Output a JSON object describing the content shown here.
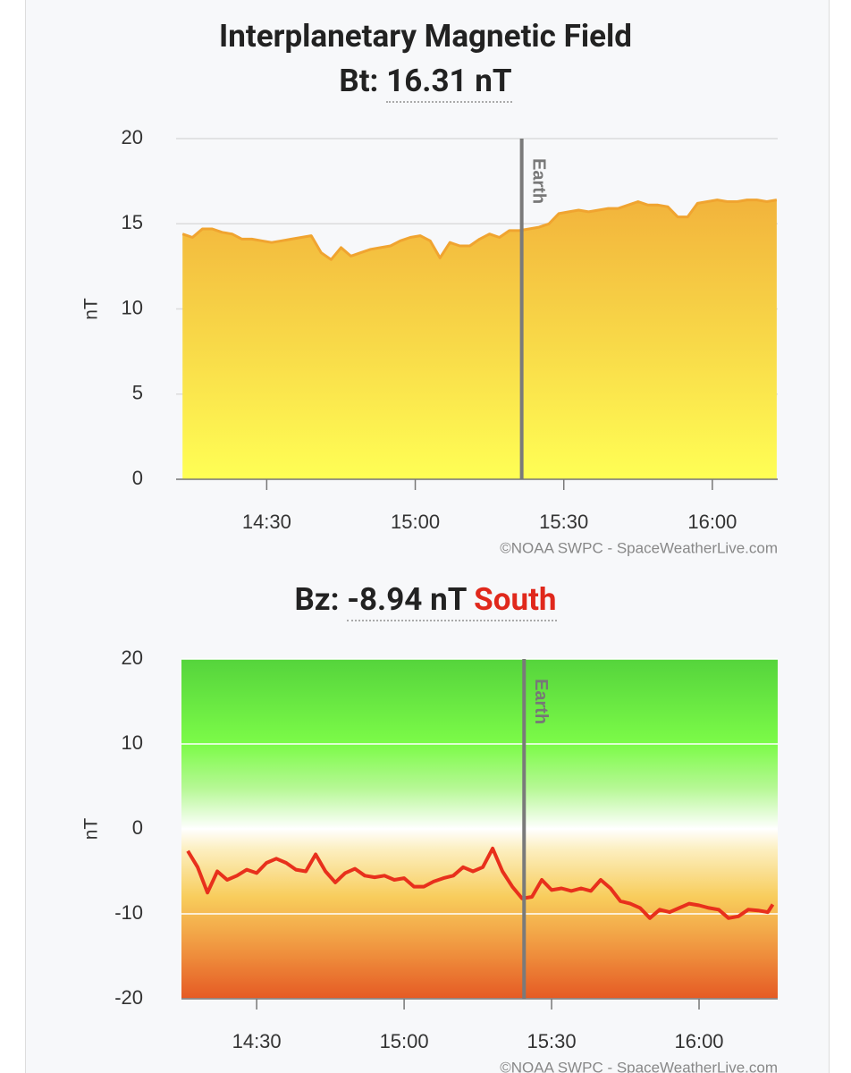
{
  "chart_data": [
    {
      "type": "area",
      "title": "Interplanetary Magnetic Field",
      "subtitle_label": "Bt:",
      "subtitle_value": "16.31 nT",
      "y_label": "nT",
      "source": "©NOAA SWPC - SpaceWeatherLive.com",
      "x": [
        853,
        855,
        857,
        859,
        861,
        863,
        865,
        867,
        869,
        871,
        873,
        875,
        877,
        879,
        881,
        883,
        885,
        887,
        889,
        891,
        893,
        895,
        897,
        899,
        901,
        903,
        905,
        907,
        909,
        911,
        913,
        915,
        917,
        919,
        921,
        923,
        925,
        927,
        929,
        931,
        933,
        935,
        937,
        939,
        941,
        943,
        945,
        947,
        949,
        951,
        953,
        955,
        957,
        959,
        961,
        963,
        965,
        967,
        969,
        971,
        973
      ],
      "series": [
        {
          "name": "Bt",
          "color": "#f0a430",
          "values": [
            14.4,
            14.2,
            14.7,
            14.7,
            14.5,
            14.4,
            14.1,
            14.1,
            14.0,
            13.9,
            14.0,
            14.1,
            14.2,
            14.3,
            13.3,
            12.9,
            13.6,
            13.1,
            13.3,
            13.5,
            13.6,
            13.7,
            14.0,
            14.2,
            14.3,
            14.0,
            13.0,
            13.9,
            13.7,
            13.7,
            14.1,
            14.4,
            14.2,
            14.6,
            14.6,
            14.7,
            14.8,
            15.0,
            15.6,
            15.7,
            15.8,
            15.7,
            15.8,
            15.9,
            15.9,
            16.1,
            16.3,
            16.1,
            16.1,
            16.0,
            15.4,
            15.4,
            16.2,
            16.3,
            16.4,
            16.3,
            16.3,
            16.4,
            16.4,
            16.3,
            16.4
          ]
        }
      ],
      "xlim": [
        851.7,
        973.2
      ],
      "xticks": [
        {
          "value": 870,
          "label": "14:30"
        },
        {
          "value": 900,
          "label": "15:00"
        },
        {
          "value": 930,
          "label": "15:30"
        },
        {
          "value": 960,
          "label": "16:00"
        }
      ],
      "ylim": [
        0,
        20
      ],
      "yticks": [
        0,
        5,
        10,
        15,
        20
      ],
      "grid": true,
      "annotation": {
        "text": "Earth",
        "x": 921.5
      }
    },
    {
      "type": "line",
      "subtitle_label": "Bz:",
      "subtitle_value": "-8.94 nT",
      "subtitle_status": "South",
      "y_label": "nT",
      "source": "©NOAA SWPC - SpaceWeatherLive.com",
      "x": [
        856,
        858,
        860,
        862,
        864,
        866,
        868,
        870,
        872,
        874,
        876,
        878,
        880,
        882,
        884,
        886,
        888,
        890,
        892,
        894,
        896,
        898,
        900,
        902,
        904,
        906,
        908,
        910,
        912,
        914,
        916,
        918,
        920,
        922,
        924,
        926,
        928,
        930,
        932,
        934,
        936,
        938,
        940,
        942,
        944,
        946,
        948,
        950,
        952,
        954,
        956,
        958,
        960,
        962,
        964,
        966,
        968,
        970,
        972,
        974,
        975
      ],
      "series": [
        {
          "name": "Bz",
          "color": "#e8301c",
          "values": [
            -2.6,
            -4.5,
            -7.5,
            -5.0,
            -6.0,
            -5.5,
            -4.8,
            -5.2,
            -4.0,
            -3.5,
            -4.0,
            -4.8,
            -5.0,
            -3.0,
            -5.0,
            -6.3,
            -5.2,
            -4.7,
            -5.5,
            -5.7,
            -5.5,
            -6.0,
            -5.8,
            -6.8,
            -6.8,
            -6.2,
            -5.8,
            -5.5,
            -4.5,
            -5.0,
            -4.5,
            -2.3,
            -5.0,
            -6.8,
            -8.2,
            -8.0,
            -6.0,
            -7.2,
            -7.0,
            -7.3,
            -7.0,
            -7.3,
            -6.0,
            -7.0,
            -8.5,
            -8.8,
            -9.3,
            -10.5,
            -9.5,
            -9.8,
            -9.3,
            -8.8,
            -9.0,
            -9.3,
            -9.5,
            -10.5,
            -10.3,
            -9.5,
            -9.6,
            -9.8,
            -8.9
          ]
        }
      ],
      "xlim": [
        854.7,
        976
      ],
      "xticks": [
        {
          "value": 870,
          "label": "14:30"
        },
        {
          "value": 900,
          "label": "15:00"
        },
        {
          "value": 930,
          "label": "15:30"
        },
        {
          "value": 960,
          "label": "16:00"
        }
      ],
      "ylim": [
        -20,
        20
      ],
      "yticks": [
        -20,
        -10,
        0,
        10,
        20
      ],
      "grid": true,
      "annotation": {
        "text": "Earth",
        "x": 924.4
      }
    }
  ]
}
